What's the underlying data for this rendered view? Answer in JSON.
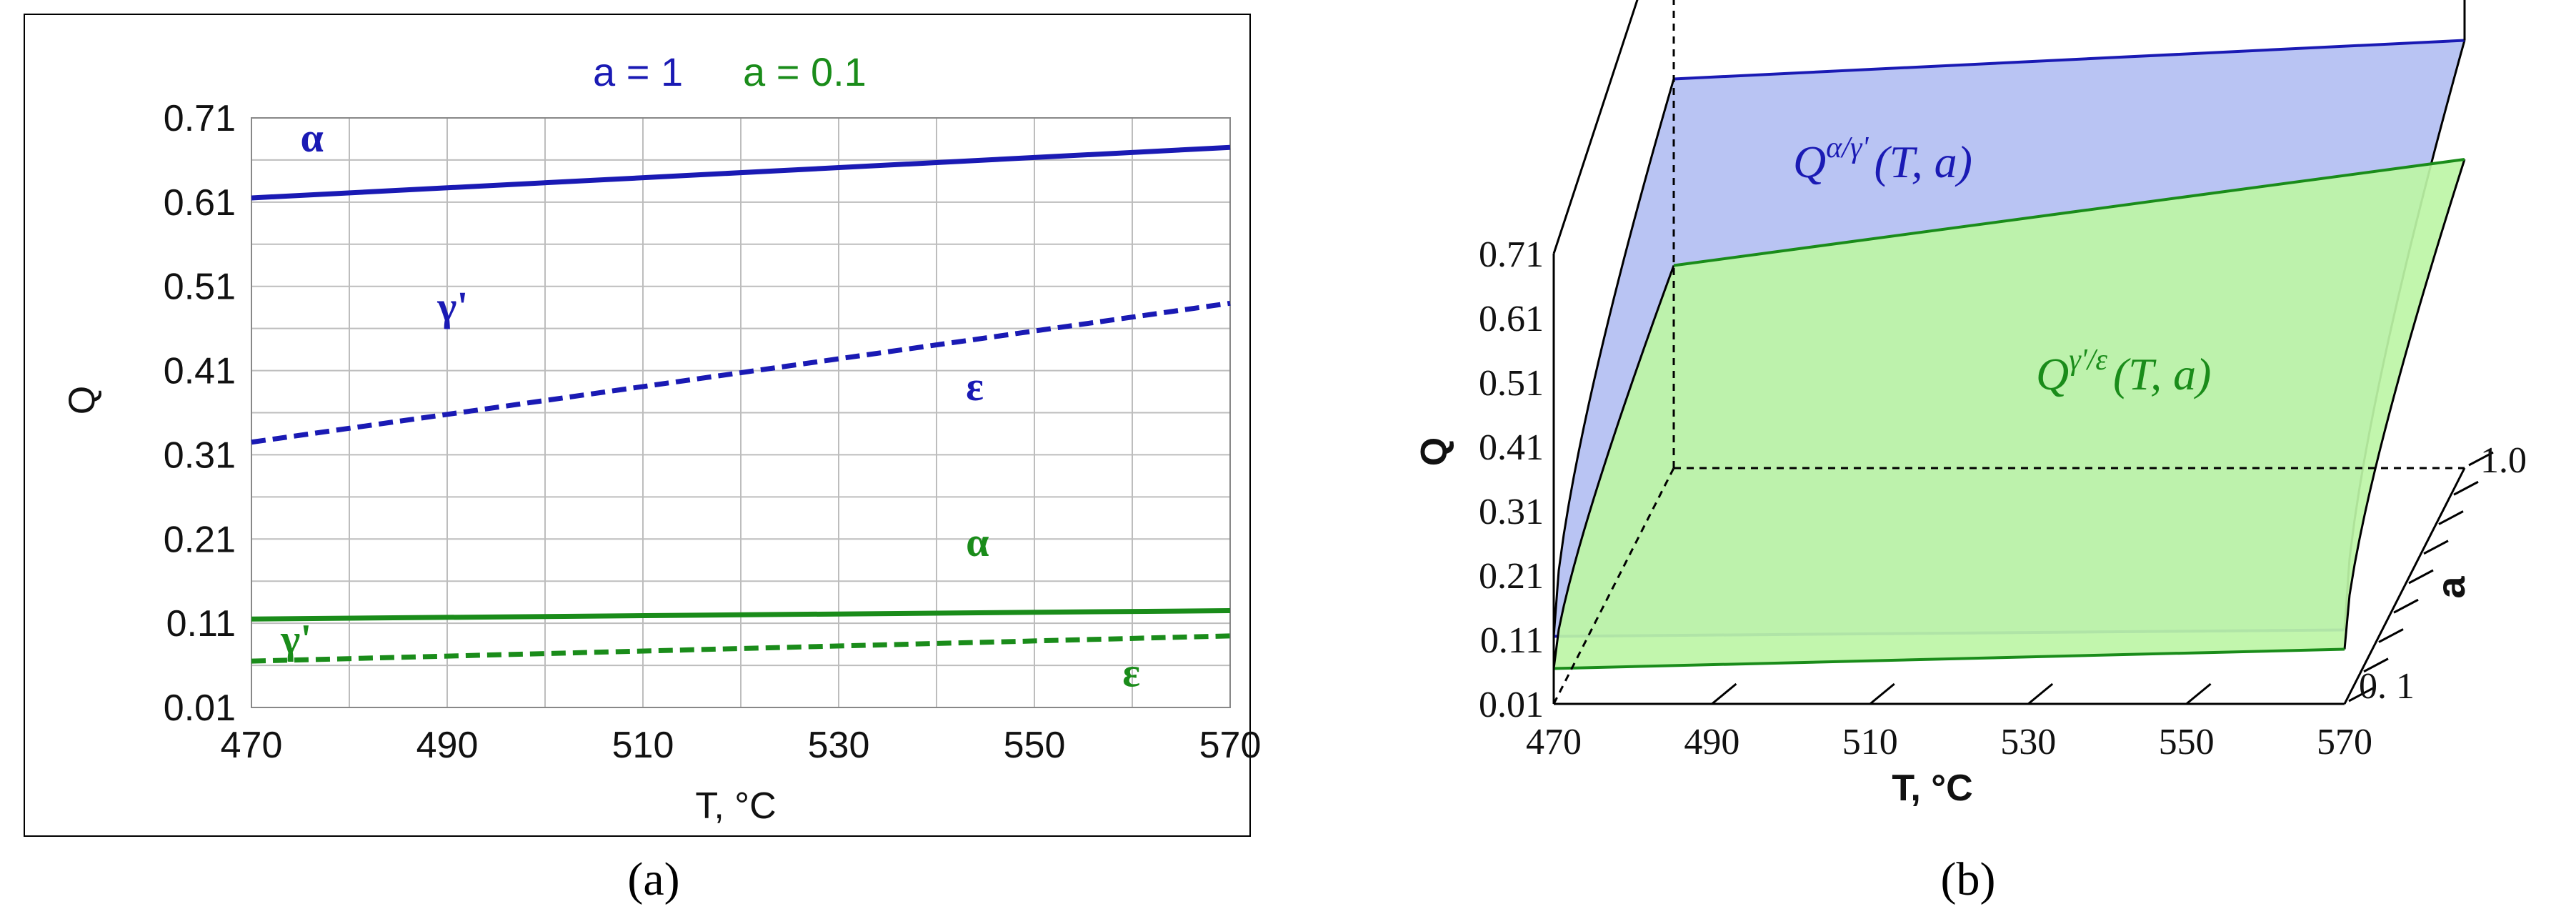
{
  "colors": {
    "blue": "#1a1ab4",
    "green": "#1a8c1a",
    "blue_fill": "#b3bff2",
    "green_fill": "#bdf5a6",
    "grid": "#bdbdbd"
  },
  "panel_labels": {
    "a": "(a)",
    "b": "(b)"
  },
  "chart_data": [
    {
      "type": "line",
      "panel": "a",
      "xlabel": "T, °C",
      "ylabel": "Q",
      "xlim": [
        470,
        570
      ],
      "ylim": [
        0.01,
        0.71
      ],
      "x_ticks": [
        470,
        490,
        510,
        530,
        550,
        570
      ],
      "y_ticks": [
        0.01,
        0.11,
        0.21,
        0.31,
        0.41,
        0.51,
        0.61,
        0.71
      ],
      "y_tick_labels": [
        "0.01",
        "0.11",
        "0.21",
        "0.31",
        "0.41",
        "0.51",
        "0.61",
        "0.71"
      ],
      "grid": true,
      "legend": [
        {
          "label": "a = 1",
          "color": "#1a1ab4"
        },
        {
          "label": "a = 0.1",
          "color": "#1a8c1a"
        }
      ],
      "series": [
        {
          "group": "a = 1",
          "x": [
            470,
            570
          ],
          "y": [
            0.615,
            0.675
          ],
          "style": "solid",
          "color": "#1a1ab4"
        },
        {
          "group": "a = 1",
          "x": [
            470,
            570
          ],
          "y": [
            0.325,
            0.49
          ],
          "style": "dashed",
          "color": "#1a1ab4"
        },
        {
          "group": "a = 0.1",
          "x": [
            470,
            570
          ],
          "y": [
            0.115,
            0.125
          ],
          "style": "solid",
          "color": "#1a8c1a"
        },
        {
          "group": "a = 0.1",
          "x": [
            470,
            570
          ],
          "y": [
            0.065,
            0.095
          ],
          "style": "dashed",
          "color": "#1a8c1a"
        }
      ],
      "annotations": [
        {
          "text": "α",
          "color": "#1a1ab4",
          "x": 475,
          "y": 0.67
        },
        {
          "text": "γ'",
          "color": "#1a1ab4",
          "x": 489,
          "y": 0.47
        },
        {
          "text": "ε",
          "color": "#1a1ab4",
          "x": 543,
          "y": 0.375
        },
        {
          "text": "α",
          "color": "#1a8c1a",
          "x": 543,
          "y": 0.19
        },
        {
          "text": "γ'",
          "color": "#1a8c1a",
          "x": 473,
          "y": 0.075
        },
        {
          "text": "ε",
          "color": "#1a8c1a",
          "x": 559,
          "y": 0.035
        }
      ]
    },
    {
      "type": "surface",
      "panel": "b",
      "xlabel": "T, °C",
      "ylabel": "Q",
      "zlabel": "a",
      "xlim": [
        470,
        570
      ],
      "ylim": [
        0.01,
        0.71
      ],
      "zlim": [
        0.1,
        1.0
      ],
      "x_tick_labels": [
        "470",
        "490",
        "510",
        "530",
        "550",
        "570"
      ],
      "y_tick_labels": [
        "0.01",
        "0.11",
        "0.21",
        "0.31",
        "0.41",
        "0.51",
        "0.61",
        "0.71"
      ],
      "a_tick_labels": [
        "0. 1",
        "1.0"
      ],
      "surfaces": [
        {
          "label": "Q^{α/γ'}(T, a)",
          "label_parts": [
            "Q",
            "α/γ'",
            "(T, a)"
          ],
          "color": "#1a1ab4",
          "corners": {
            "T470_a01": 0.115,
            "T570_a01": 0.125,
            "T470_a1": 0.615,
            "T570_a1": 0.675
          }
        },
        {
          "label": "Q^{γ'/ε}(T, a)",
          "label_parts": [
            "Q",
            "γ'/ε",
            "(T, a)"
          ],
          "color": "#1a8c1a",
          "corners": {
            "T470_a01": 0.065,
            "T570_a01": 0.095,
            "T470_a1": 0.325,
            "T570_a1": 0.49
          }
        }
      ]
    }
  ]
}
